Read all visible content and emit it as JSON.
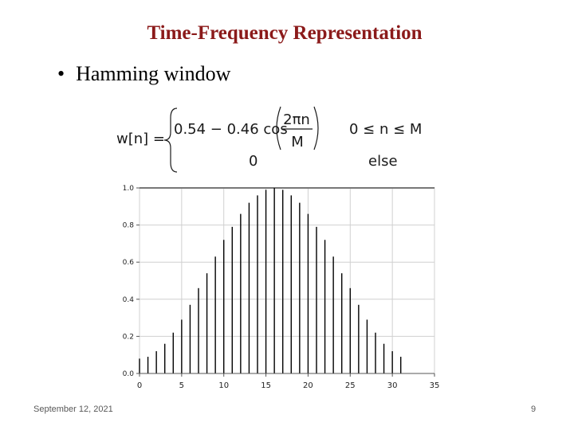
{
  "slide": {
    "title": "Time-Frequency Representation",
    "bullet": "Hamming window",
    "footer_date": "September 12, 2021",
    "page_number": "9"
  },
  "formula": {
    "lhs": "w[n] =",
    "case1_expr": "0.54 − 0.46 cos",
    "numerator": "2πn",
    "denominator": "M",
    "case1_condition": "0 ≤ n ≤ M",
    "case2_value": "0",
    "case2_condition": "else"
  },
  "chart_data": {
    "type": "bar",
    "x": [
      0,
      1,
      2,
      3,
      4,
      5,
      6,
      7,
      8,
      9,
      10,
      11,
      12,
      13,
      14,
      15,
      16,
      17,
      18,
      19,
      20,
      21,
      22,
      23,
      24,
      25,
      26,
      27,
      28,
      29,
      30,
      31
    ],
    "values": [
      0.08,
      0.09,
      0.12,
      0.16,
      0.22,
      0.29,
      0.37,
      0.46,
      0.54,
      0.63,
      0.72,
      0.79,
      0.86,
      0.92,
      0.96,
      0.99,
      1.0,
      0.99,
      0.96,
      0.92,
      0.86,
      0.79,
      0.72,
      0.63,
      0.54,
      0.46,
      0.37,
      0.29,
      0.22,
      0.16,
      0.12,
      0.09
    ],
    "xticks": [
      0,
      5,
      10,
      15,
      20,
      25,
      30,
      35
    ],
    "yticks": [
      0.0,
      0.2,
      0.4,
      0.6,
      0.8,
      1.0
    ],
    "xlim": [
      0,
      35
    ],
    "ylim": [
      0,
      1.0
    ],
    "grid": true,
    "colors": {
      "stem": "#000000",
      "grid": "#d0d0d0",
      "axis": "#999999"
    }
  }
}
